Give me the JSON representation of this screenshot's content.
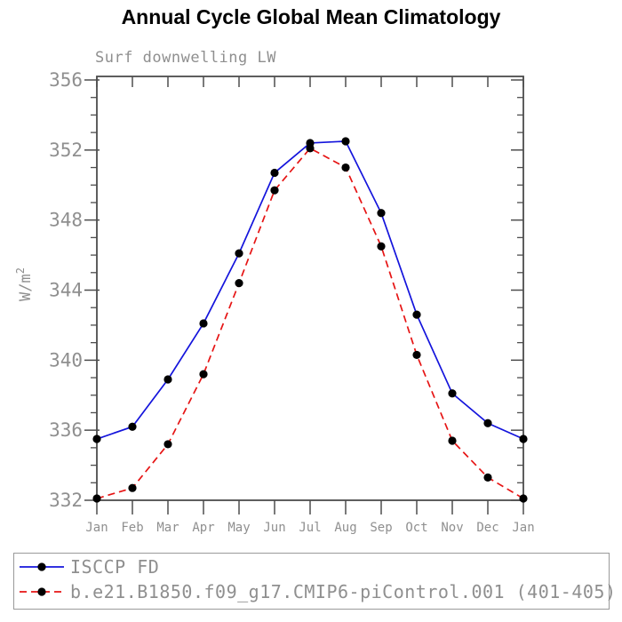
{
  "header": {
    "title": "Annual Cycle Global Mean Climatology",
    "subtitle": "Surf downwelling LW"
  },
  "colors": {
    "axis": "#4d4d4d",
    "gray_text": "#8f8f8f",
    "title_text": "#000000",
    "obs_line": "#1414dc",
    "model_line": "#e61414",
    "marker": "#000000",
    "legend_border": "#9a9a9a"
  },
  "chart_data": {
    "type": "line",
    "title": "Annual Cycle Global Mean Climatology",
    "subtitle": "Surf downwelling LW",
    "xlabel": "",
    "ylabel": "W/m",
    "ylabel_superscript": "2",
    "categories": [
      "Jan",
      "Feb",
      "Mar",
      "Apr",
      "May",
      "Jun",
      "Jul",
      "Aug",
      "Sep",
      "Oct",
      "Nov",
      "Dec",
      "Jan"
    ],
    "y_major_ticks": [
      332,
      336,
      340,
      344,
      348,
      352,
      356
    ],
    "y_minor_tick_step": 1,
    "ylim": [
      332,
      356.2
    ],
    "grid": false,
    "legend_position": "bottom",
    "series": [
      {
        "name": "ISCCP FD",
        "color": "#1414dc",
        "style": "solid",
        "marker": "filled-circle",
        "marker_color": "#000000",
        "values": [
          335.5,
          336.2,
          338.9,
          342.1,
          346.1,
          350.7,
          352.4,
          352.5,
          348.4,
          342.6,
          338.1,
          336.4,
          335.5
        ]
      },
      {
        "name": "b.e21.B1850.f09_g17.CMIP6-piControl.001 (401-405)",
        "color": "#e61414",
        "style": "dashed",
        "marker": "filled-circle",
        "marker_color": "#000000",
        "values": [
          332.1,
          332.7,
          335.2,
          339.2,
          344.4,
          349.7,
          352.1,
          351.0,
          346.5,
          340.3,
          335.4,
          333.3,
          332.1
        ]
      }
    ]
  }
}
